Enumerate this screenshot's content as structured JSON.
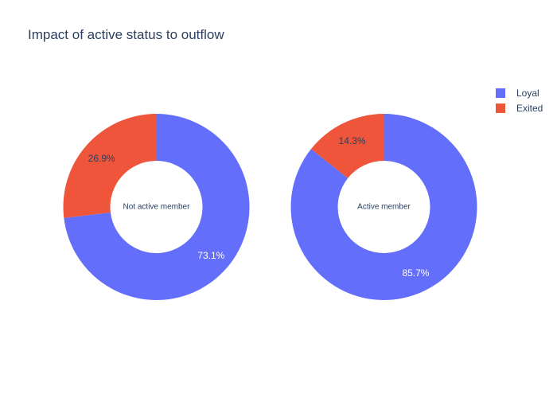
{
  "chart_data": {
    "type": "pie",
    "title": "Impact of active status to outflow",
    "legend": {
      "placement": "top-right",
      "entries": [
        {
          "name": "Loyal",
          "color": "#636efa"
        },
        {
          "name": "Exited",
          "color": "#ef553b"
        }
      ]
    },
    "charts": [
      {
        "center_label": "Not active member",
        "slices": [
          {
            "name": "Loyal",
            "value": 73.1,
            "label": "73.1%",
            "color": "#636efa"
          },
          {
            "name": "Exited",
            "value": 26.9,
            "label": "26.9%",
            "color": "#ef553b"
          }
        ]
      },
      {
        "center_label": "Active member",
        "slices": [
          {
            "name": "Loyal",
            "value": 85.7,
            "label": "85.7%",
            "color": "#636efa"
          },
          {
            "name": "Exited",
            "value": 14.3,
            "label": "14.3%",
            "color": "#ef553b"
          }
        ]
      }
    ]
  }
}
